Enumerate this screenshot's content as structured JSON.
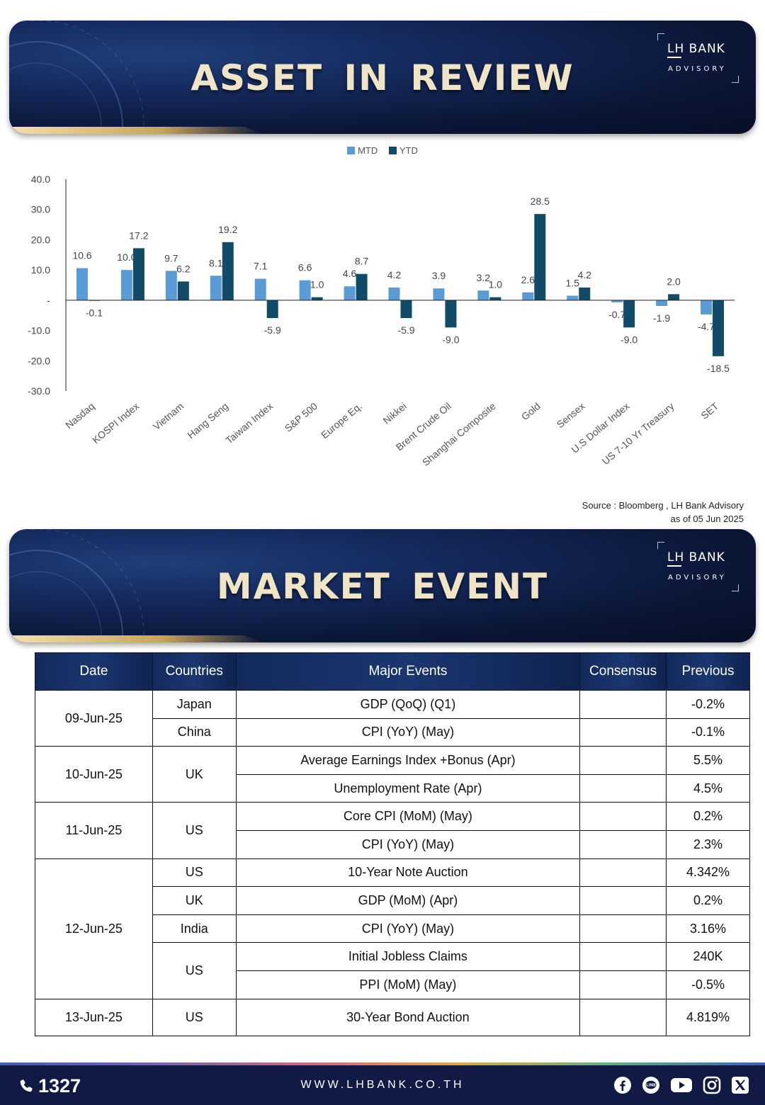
{
  "header1": {
    "title": "ASSET IN REVIEW",
    "brand": "BANK",
    "brand_lh": "LH",
    "brand_sub": "ADVISORY"
  },
  "header2": {
    "title": "MARKET EVENT",
    "brand": "BANK",
    "brand_lh": "LH",
    "brand_sub": "ADVISORY"
  },
  "colors": {
    "mtd": "#5b9bd5",
    "ytd": "#124b68",
    "navy": "#101a44",
    "gold": "#c9a25e"
  },
  "chart_data": {
    "type": "bar",
    "categories": [
      "Nasdaq",
      "KOSPI Index",
      "Vietnam",
      "Hang Seng",
      "Taiwan Index",
      "S&P 500",
      "Europe Eq.",
      "Nikkei",
      "Brent Crude Oil",
      "Shanghai Composite",
      "Gold",
      "Sensex",
      "U.S Dollar Index",
      "US 7-10 Yr Treasury",
      "SET"
    ],
    "series": [
      {
        "name": "MTD",
        "values": [
          10.6,
          10.0,
          9.7,
          8.1,
          7.1,
          6.6,
          4.6,
          4.2,
          3.9,
          3.2,
          2.6,
          1.5,
          -0.7,
          -1.9,
          -4.7
        ],
        "color": "#5b9bd5"
      },
      {
        "name": "YTD",
        "values": [
          -0.1,
          17.2,
          6.2,
          19.2,
          -5.9,
          1.0,
          8.7,
          -5.9,
          -9.0,
          1.0,
          28.5,
          4.2,
          -9.0,
          2.0,
          -18.5
        ],
        "color": "#124b68"
      }
    ],
    "ylim": [
      -30,
      40
    ],
    "yticks": [
      "40.0",
      "30.0",
      "20.0",
      "10.0",
      "-",
      "-10.0",
      "-20.0",
      "-30.0"
    ],
    "legend": "top-center",
    "grid": false
  },
  "source": {
    "line1": "Source : Bloomberg , LH Bank Advisory",
    "line2": "as of 05 Jun 2025"
  },
  "table": {
    "headers": {
      "date": "Date",
      "countries": "Countries",
      "events": "Major Events",
      "consensus": "Consensus",
      "previous": "Previous"
    },
    "rows": [
      {
        "date": "09-Jun-25",
        "country": "Japan",
        "event": "GDP (QoQ) (Q1)",
        "consensus": "",
        "previous": "-0.2%"
      },
      {
        "date": "",
        "country": "China",
        "event": "CPI (YoY) (May)",
        "consensus": "",
        "previous": "-0.1%"
      },
      {
        "date": "10-Jun-25",
        "country": "UK",
        "event": "Average Earnings Index +Bonus (Apr)",
        "consensus": "",
        "previous": "5.5%"
      },
      {
        "date": "",
        "country": "",
        "event": "Unemployment Rate (Apr)",
        "consensus": "",
        "previous": "4.5%"
      },
      {
        "date": "11-Jun-25",
        "country": "US",
        "event": "Core CPI (MoM) (May)",
        "consensus": "",
        "previous": "0.2%"
      },
      {
        "date": "",
        "country": "",
        "event": "CPI (YoY) (May)",
        "consensus": "",
        "previous": "2.3%"
      },
      {
        "date": "12-Jun-25",
        "country": "US",
        "event": "10-Year Note Auction",
        "consensus": "",
        "previous": "4.342%"
      },
      {
        "date": "",
        "country": "UK",
        "event": "GDP (MoM) (Apr)",
        "consensus": "",
        "previous": "0.2%"
      },
      {
        "date": "",
        "country": "India",
        "event": "CPI (YoY) (May)",
        "consensus": "",
        "previous": "3.16%"
      },
      {
        "date": "",
        "country": "US",
        "event": "Initial Jobless Claims",
        "consensus": "",
        "previous": "240K"
      },
      {
        "date": "",
        "country": "",
        "event": "PPI (MoM) (May)",
        "consensus": "",
        "previous": "-0.5%"
      },
      {
        "date": "13-Jun-25",
        "country": "US",
        "event": "30-Year Bond Auction",
        "consensus": "",
        "previous": "4.819%"
      }
    ]
  },
  "footer": {
    "phone": "1327",
    "url": "WWW.LHBANK.CO.TH",
    "social_icons": [
      "facebook-icon",
      "line-icon",
      "youtube-icon",
      "instagram-icon",
      "x-icon"
    ]
  }
}
